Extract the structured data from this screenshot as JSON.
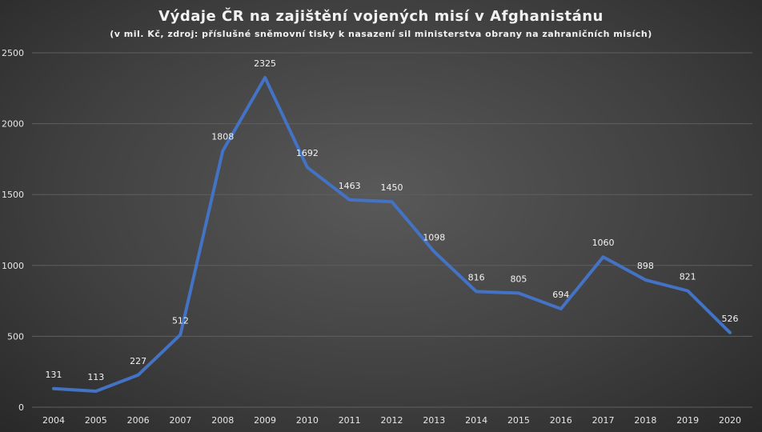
{
  "chart_data": {
    "type": "line",
    "title": "Výdaje ČR na zajištění vojených misí v Afghanistánu",
    "subtitle": "(v mil. Kč, zdroj: příslušné sněmovní tisky k nasazení sil ministerstva obrany na zahraničních misích)",
    "xlabel": "",
    "ylabel": "",
    "categories": [
      "2004",
      "2005",
      "2006",
      "2007",
      "2008",
      "2009",
      "2010",
      "2011",
      "2012",
      "2013",
      "2014",
      "2015",
      "2016",
      "2017",
      "2018",
      "2019",
      "2020"
    ],
    "series": [
      {
        "values": [
          131,
          113,
          227,
          512,
          1808,
          2325,
          1692,
          1463,
          1450,
          1098,
          816,
          805,
          694,
          1060,
          898,
          821,
          526
        ]
      }
    ],
    "ylim": [
      0,
      2500
    ],
    "yticks": [
      0,
      500,
      1000,
      1500,
      2000,
      2500
    ],
    "yticks_labels": [
      "0",
      "500",
      "1000",
      "1500",
      "2000",
      "2500"
    ],
    "grid": true,
    "data_labels": true,
    "legend": "none",
    "line_color": "#4472C4",
    "grid_color": "#5f5f5f"
  }
}
